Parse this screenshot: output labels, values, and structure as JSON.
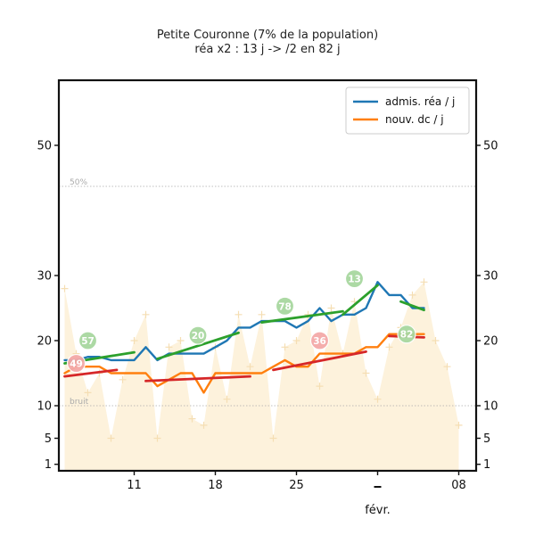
{
  "header": {
    "title": "Petite Couronne (7% de la population)",
    "subtitle": "réa x2 : 13 j -> /2 en 82 j"
  },
  "chart_data": {
    "type": "line",
    "title": "Petite Couronne (7% de la population)",
    "subtitle": "réa x2 : 13 j -> /2 en 82 j",
    "x_tick_labels": [
      "11",
      "18",
      "25",
      "",
      "08"
    ],
    "x_tick_days": [
      11,
      18,
      25,
      32,
      39
    ],
    "month_label": "févr.",
    "y_ticks": [
      1,
      5,
      10,
      20,
      30,
      50
    ],
    "ylim": [
      0,
      60
    ],
    "xlim": [
      4.5,
      40.5
    ],
    "grid": false,
    "legend_position": "top-right",
    "annotations": [
      {
        "text": "50%",
        "y": 43.7
      },
      {
        "text": "bruit",
        "y": 10
      }
    ],
    "series": [
      {
        "name": "admis. réa / j",
        "color": "#1f77b4",
        "x": [
          5,
          6,
          7,
          8,
          9,
          10,
          11,
          12,
          13,
          14,
          15,
          16,
          17,
          18,
          19,
          20,
          21,
          22,
          23,
          24,
          25,
          26,
          27,
          28,
          29,
          30,
          31,
          32,
          33,
          34,
          35,
          36
        ],
        "y": [
          17,
          17,
          17.5,
          17.5,
          17,
          17,
          17,
          19,
          17,
          18,
          18,
          18,
          18,
          19,
          20,
          22,
          22,
          23,
          23,
          23,
          22,
          23,
          25,
          23,
          24,
          24,
          25,
          29,
          27,
          27,
          25,
          25
        ]
      },
      {
        "name": "nouv. dc / j",
        "color": "#ff7f0e",
        "x": [
          5,
          6,
          7,
          8,
          9,
          10,
          11,
          12,
          13,
          14,
          15,
          16,
          17,
          18,
          19,
          20,
          21,
          22,
          23,
          24,
          25,
          26,
          27,
          28,
          29,
          30,
          31,
          32,
          33,
          34,
          35,
          36
        ],
        "y": [
          15,
          16,
          16,
          16,
          15,
          15,
          15,
          15,
          13,
          14,
          15,
          15,
          12,
          15,
          15,
          15,
          15,
          15,
          16,
          17,
          16,
          16,
          18,
          18,
          18,
          18,
          19,
          19,
          21,
          21,
          21,
          21
        ]
      }
    ],
    "fit_lines": [
      {
        "kind": "croissance",
        "color": "#2ca02c",
        "x": [
          5,
          11
        ],
        "y": [
          16.5,
          18.2
        ]
      },
      {
        "kind": "croissance",
        "color": "#2ca02c",
        "x": [
          13,
          20
        ],
        "y": [
          17.2,
          21.2
        ]
      },
      {
        "kind": "croissance",
        "color": "#2ca02c",
        "x": [
          22,
          29
        ],
        "y": [
          22.8,
          24.5
        ]
      },
      {
        "kind": "croissance",
        "color": "#2ca02c",
        "x": [
          29,
          32
        ],
        "y": [
          24,
          28.5
        ]
      },
      {
        "kind": "décroissance",
        "color": "#2ca02c",
        "x": [
          34,
          36
        ],
        "y": [
          26,
          24.7
        ]
      },
      {
        "kind": "décroissance",
        "color": "#d62728",
        "x": [
          5,
          9.5
        ],
        "y": [
          14.5,
          15.5
        ]
      },
      {
        "kind": "décroissance",
        "color": "#d62728",
        "x": [
          12,
          21
        ],
        "y": [
          13.8,
          14.5
        ]
      },
      {
        "kind": "croissance",
        "color": "#d62728",
        "x": [
          23,
          31
        ],
        "y": [
          15.5,
          18.3
        ]
      },
      {
        "kind": "croissance",
        "color": "#d62728",
        "x": [
          33,
          36
        ],
        "y": [
          20.7,
          20.5
        ]
      }
    ],
    "doubling_labels": [
      {
        "text": "57",
        "color": "#2ca02c",
        "x": 7,
        "y": 20
      },
      {
        "text": "49",
        "color": "#d62728",
        "x": 6,
        "y": 16.5
      },
      {
        "text": "20",
        "color": "#2ca02c",
        "x": 16.5,
        "y": 20.8
      },
      {
        "text": "78",
        "color": "#2ca02c",
        "x": 24,
        "y": 25.3
      },
      {
        "text": "36",
        "color": "#d62728",
        "x": 27,
        "y": 20
      },
      {
        "text": "13",
        "color": "#2ca02c",
        "x": 30,
        "y": 29.5
      },
      {
        "text": "82",
        "color": "#2ca02c",
        "x": 34.5,
        "y": 21
      }
    ],
    "daily_admissions": {
      "color": "#f5deb3",
      "x": [
        5,
        6,
        7,
        8,
        9,
        10,
        11,
        12,
        13,
        14,
        15,
        16,
        17,
        18,
        19,
        20,
        21,
        22,
        23,
        24,
        25,
        26,
        27,
        28,
        29,
        30,
        31,
        32,
        33,
        34,
        35,
        36,
        37,
        38,
        39
      ],
      "y": [
        28,
        18,
        12,
        15,
        5,
        14,
        20,
        24,
        5,
        19,
        20,
        8,
        7,
        19,
        11,
        24,
        16,
        24,
        5,
        19,
        20,
        24,
        13,
        25,
        18,
        26,
        15,
        11,
        19,
        22,
        27,
        29,
        20,
        16,
        7
      ]
    }
  }
}
